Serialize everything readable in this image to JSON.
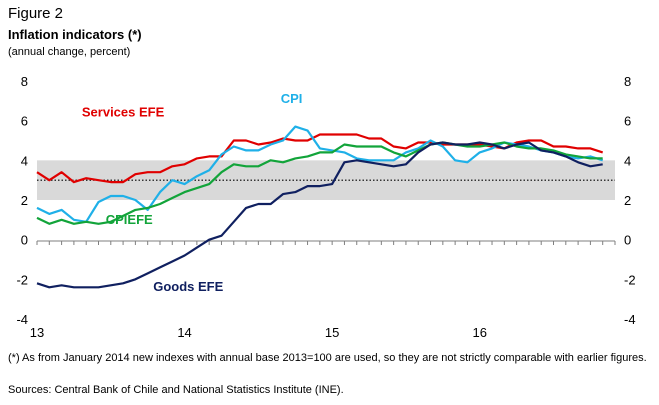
{
  "figure": {
    "label": "Figure 2",
    "title": "Inflation indicators (*)",
    "subtitle": "(annual change, percent)",
    "footnote": "(*) As from January 2014 new indexes with annual base 2013=100 are used, so they are not strictly comparable with earlier figures.",
    "sources": "Sources: Central Bank of Chile and National Statistics Institute (INE)."
  },
  "chart_data": {
    "type": "line",
    "title": "Inflation indicators (*)",
    "ylabel": "annual change, percent",
    "xlabel": "",
    "ylim": [
      -4,
      8
    ],
    "xlim": [
      0,
      47
    ],
    "yticks_left": [
      "8",
      "6",
      "4",
      "2",
      "0",
      "-2",
      "-4"
    ],
    "yticks_right": [
      "8",
      "6",
      "4",
      "2",
      "0",
      "-2",
      "-4"
    ],
    "ytick_values": [
      8,
      6,
      4,
      2,
      0,
      -2,
      -4
    ],
    "xticks": [
      {
        "label": "13",
        "x": 0
      },
      {
        "label": "14",
        "x": 12
      },
      {
        "label": "15",
        "x": 24
      },
      {
        "label": "16",
        "x": 36
      }
    ],
    "band": {
      "from": 2,
      "to": 4,
      "color": "#d9d9d9"
    },
    "target_line": {
      "value": 3,
      "style": "dotted"
    },
    "series": [
      {
        "name": "Services EFE",
        "color": "#e00000",
        "label_x": 7,
        "label_y": 6.2,
        "values": [
          3.4,
          3.0,
          3.4,
          2.9,
          3.1,
          3.0,
          2.9,
          2.9,
          3.3,
          3.4,
          3.4,
          3.7,
          3.8,
          4.1,
          4.2,
          4.2,
          5.0,
          5.0,
          4.8,
          4.9,
          5.1,
          5.0,
          5.0,
          5.3,
          5.3,
          5.3,
          5.3,
          5.1,
          5.1,
          4.7,
          4.6,
          4.9,
          4.9,
          4.8,
          4.8,
          4.8,
          4.8,
          4.7,
          4.6,
          4.9,
          5.0,
          5.0,
          4.7,
          4.7,
          4.6,
          4.6,
          4.4
        ]
      },
      {
        "name": "CPI",
        "color": "#1fb0e8",
        "label_x": 20.7,
        "label_y": 6.9,
        "values": [
          1.6,
          1.3,
          1.5,
          1.0,
          0.9,
          1.9,
          2.2,
          2.2,
          2.0,
          1.5,
          2.4,
          3.0,
          2.8,
          3.2,
          3.5,
          4.3,
          4.7,
          4.5,
          4.5,
          4.8,
          5.0,
          5.7,
          5.5,
          4.6,
          4.5,
          4.4,
          4.1,
          4.0,
          4.0,
          4.0,
          4.4,
          4.6,
          5.0,
          4.7,
          4.0,
          3.9,
          4.4,
          4.6,
          4.9,
          4.8,
          4.7,
          4.5,
          4.4,
          4.2,
          4.1,
          4.2,
          4.0
        ]
      },
      {
        "name": "CPIEFE",
        "color": "#12a43a",
        "label_x": 7.5,
        "label_y": 0.8,
        "values": [
          1.1,
          0.8,
          1.0,
          0.8,
          0.9,
          0.8,
          0.9,
          1.2,
          1.5,
          1.6,
          1.8,
          2.1,
          2.4,
          2.6,
          2.8,
          3.4,
          3.8,
          3.7,
          3.7,
          4.0,
          3.9,
          4.1,
          4.2,
          4.4,
          4.4,
          4.8,
          4.7,
          4.7,
          4.7,
          4.4,
          4.2,
          4.5,
          4.8,
          4.9,
          4.8,
          4.7,
          4.7,
          4.8,
          4.9,
          4.7,
          4.6,
          4.6,
          4.5,
          4.3,
          4.2,
          4.1,
          4.1
        ]
      },
      {
        "name": "Goods EFE",
        "color": "#102060",
        "label_x": 12.3,
        "label_y": -2.6,
        "values": [
          -2.2,
          -2.4,
          -2.3,
          -2.4,
          -2.4,
          -2.4,
          -2.3,
          -2.2,
          -2.0,
          -1.7,
          -1.4,
          -1.1,
          -0.8,
          -0.4,
          0.0,
          0.2,
          0.9,
          1.6,
          1.8,
          1.8,
          2.3,
          2.4,
          2.7,
          2.7,
          2.8,
          3.9,
          4.0,
          3.9,
          3.8,
          3.7,
          3.8,
          4.4,
          4.8,
          4.9,
          4.8,
          4.8,
          4.9,
          4.8,
          4.6,
          4.8,
          4.9,
          4.5,
          4.4,
          4.2,
          3.9,
          3.7,
          3.8
        ]
      }
    ]
  }
}
